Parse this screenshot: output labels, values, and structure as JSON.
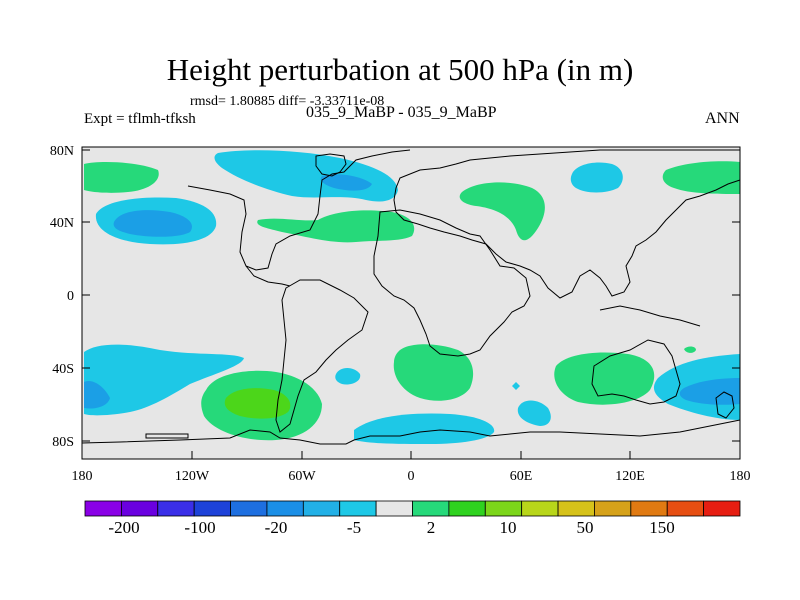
{
  "title": "Height perturbation at 500 hPa (in m)",
  "stats": "rmsd= 1.80885 diff= -3.33711e-08",
  "left_label": "Expt = tflmh-tfksh",
  "center_label": "035_9_MaBP - 035_9_MaBP",
  "right_label": "ANN",
  "lat_ticks": [
    "80N",
    "40N",
    "0",
    "40S",
    "80S"
  ],
  "lon_ticks": [
    "180",
    "120W",
    "60W",
    "0",
    "60E",
    "120E",
    "180"
  ],
  "colorbar": {
    "labels": [
      "-200",
      "-100",
      "-20",
      "-5",
      "2",
      "10",
      "50",
      "150"
    ],
    "colors": [
      "#8a00e6",
      "#6a00e0",
      "#3b2fe8",
      "#1d42d9",
      "#1e6fe0",
      "#1b8fe6",
      "#22b0e6",
      "#1ec8e6",
      "#e6e6e6",
      "#26d97a",
      "#2fd21f",
      "#7cd61a",
      "#b8d61a",
      "#d6c21a",
      "#d6a21a",
      "#e07a12",
      "#e64e12",
      "#e61e12"
    ]
  },
  "colors": {
    "background": "#e6e6e6",
    "positive": "#26d97a",
    "positive_strong": "#4cd61a",
    "negative": "#1ec8e6",
    "negative_strong": "#1b9fe6",
    "coastline": "#000000"
  }
}
